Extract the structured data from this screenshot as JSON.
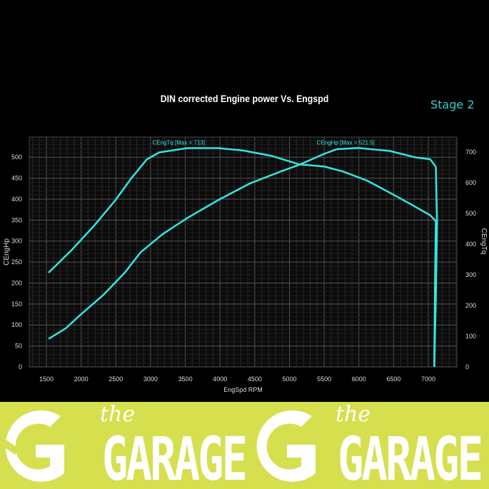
{
  "chart_data": {
    "type": "line",
    "title": "DIN corrected Engine power Vs. Engspd",
    "annotation": "Stage 2",
    "xlabel": "EngSpd RPM",
    "ylabel": "CEngHp",
    "ylabel_right": "CEngTq",
    "xlim": [
      1253,
      7411
    ],
    "ylim": [
      0,
      548
    ],
    "ylim_right": [
      0,
      749
    ],
    "x_ticks": [
      1500,
      2000,
      2500,
      3000,
      3500,
      4000,
      4500,
      5000,
      5500,
      6000,
      6500,
      7000
    ],
    "y_ticks": [
      0,
      50,
      100,
      150,
      200,
      250,
      300,
      350,
      400,
      450,
      500
    ],
    "y_ticks_right": [
      0,
      100,
      200,
      300,
      400,
      500,
      600,
      700
    ],
    "grid": true,
    "colors": {
      "background": "#000000",
      "grid": "#555555",
      "line": "#33e6e0",
      "text": "#ffffff",
      "stage": "#2fd0d0"
    },
    "series": [
      {
        "name": "CEngTq",
        "label": "CEngTq [Max = 713]",
        "axis": "right",
        "x": [
          1531,
          1868,
          2182,
          2496,
          2720,
          2944,
          3124,
          3528,
          3977,
          4335,
          4739,
          5143,
          5500,
          5770,
          6129,
          6443,
          6757,
          7027,
          7108,
          7095,
          7085
        ],
        "y": [
          307,
          382,
          459,
          544,
          614,
          676,
          699,
          713,
          713,
          705,
          688,
          660,
          653,
          637,
          606,
          568,
          529,
          494,
          475,
          250,
          0
        ]
      },
      {
        "name": "CEngHp",
        "label": "CEngHp [Max = 521.5]",
        "axis": "left",
        "x": [
          1531,
          1778,
          2002,
          2316,
          2630,
          2855,
          3169,
          3528,
          3977,
          4425,
          4874,
          5143,
          5500,
          5680,
          5995,
          6443,
          6802,
          7027,
          7108,
          7126,
          7108,
          7085
        ],
        "y": [
          67,
          92,
          126,
          171,
          225,
          273,
          316,
          355,
          398,
          437,
          466,
          482,
          508,
          519,
          522,
          515,
          500,
          495,
          477,
          347,
          160,
          0
        ]
      }
    ]
  },
  "banner": {
    "logos": [
      {
        "small": "the",
        "big": "GARAGE"
      },
      {
        "small": "the",
        "big": "GARAGE"
      }
    ]
  }
}
